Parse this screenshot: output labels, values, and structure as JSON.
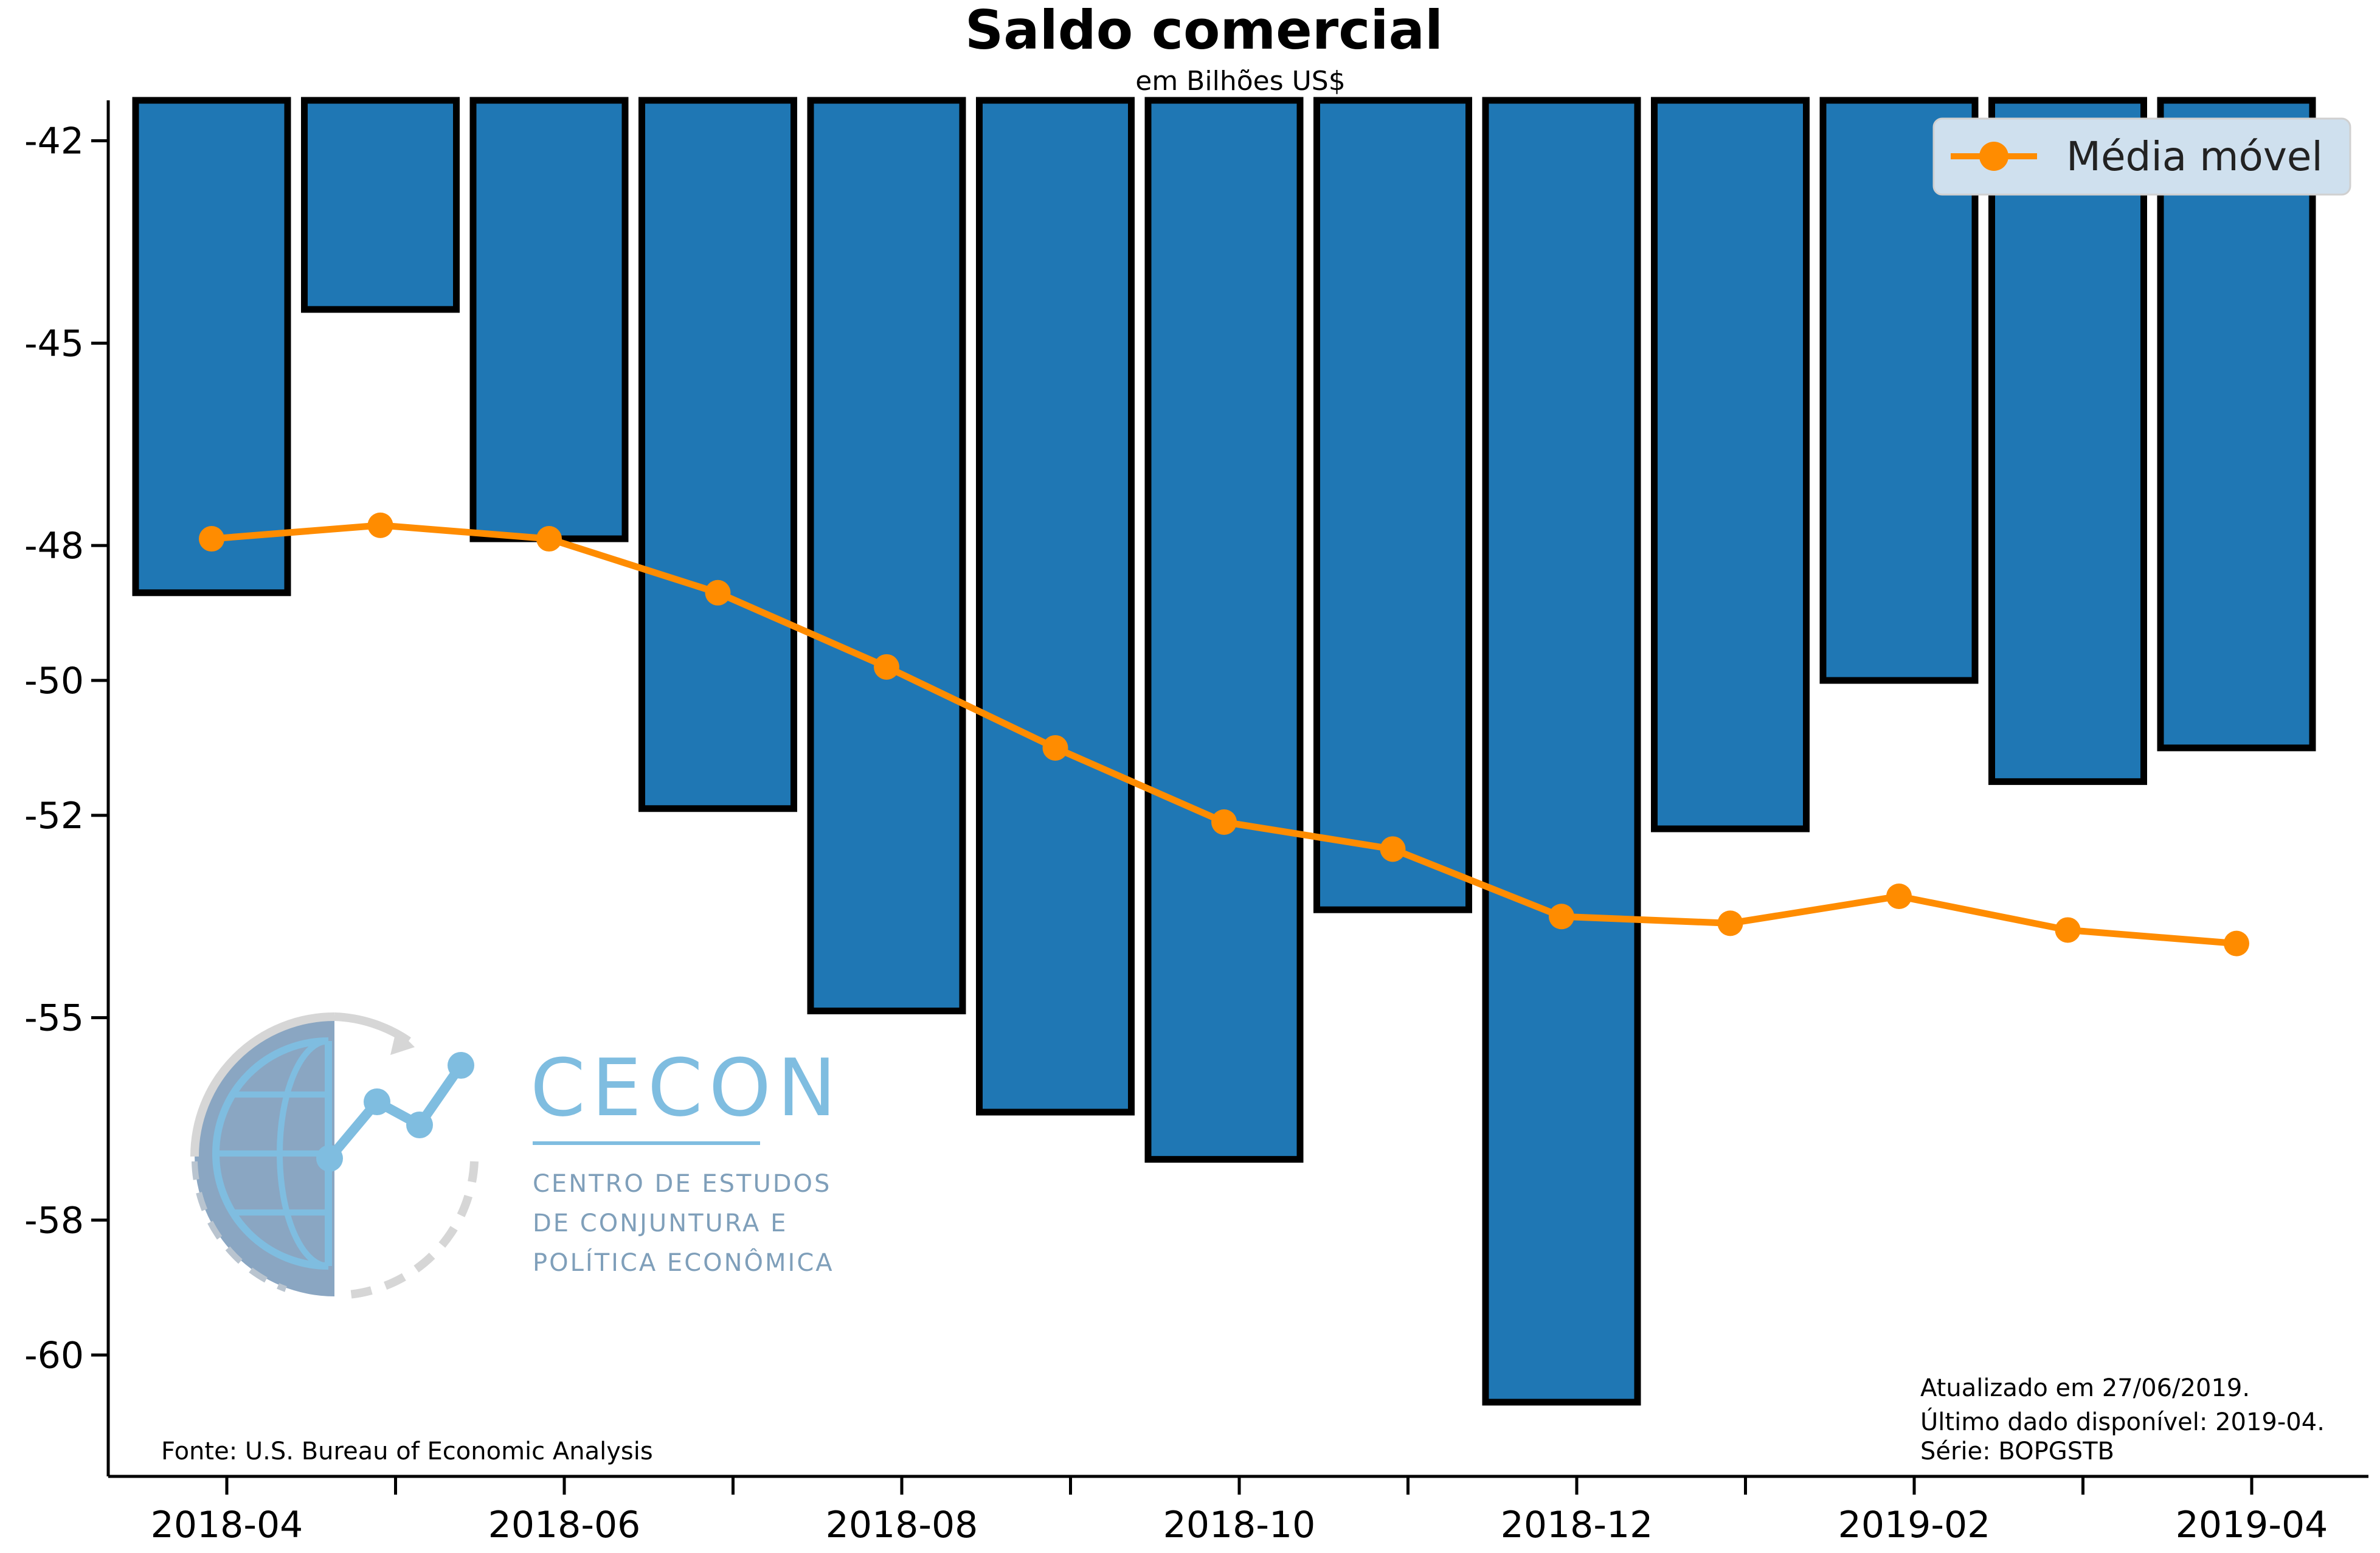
{
  "header": {
    "title": "Saldo comercial",
    "subtitle": "em Bilhões US$"
  },
  "chart_data": {
    "type": "bar",
    "title": "Saldo comercial",
    "subtitle": "em Bilhões US$",
    "categories": [
      "2018-04",
      "2018-05",
      "2018-06",
      "2018-07",
      "2018-08",
      "2018-09",
      "2018-10",
      "2018-11",
      "2018-12",
      "2019-01",
      "2019-02",
      "2019-03",
      "2019-04"
    ],
    "series": [
      {
        "type": "bar",
        "color": "#1f77b4",
        "values": [
          -48.7,
          -44.5,
          -47.9,
          -51.9,
          -54.9,
          -56.4,
          -57.1,
          -53.4,
          -60.7,
          -52.2,
          -50.0,
          -51.5,
          -51.0
        ]
      },
      {
        "name": "Média móvel",
        "type": "line",
        "color": "#ff8c00",
        "values": [
          -47.9,
          -47.7,
          -47.9,
          -48.7,
          -49.8,
          -51.0,
          -52.1,
          -52.5,
          -53.5,
          -53.6,
          -53.2,
          -53.7,
          -53.9
        ]
      }
    ],
    "ylim": [
      -61.8,
      -41.4
    ],
    "y_ticks": [
      -42,
      -45,
      -48,
      -50,
      -52,
      -55,
      -58,
      -60
    ],
    "x_tick_labels": [
      "2018-04",
      "2018-06",
      "2018-08",
      "2018-10",
      "2018-12",
      "2019-02",
      "2019-04"
    ],
    "xlabel": "",
    "ylabel": "",
    "grid": false,
    "legend_placement": "top-right"
  },
  "footer": {
    "source": "Fonte: U.S. Bureau of Economic Analysis",
    "updated": "Atualizado em 27/06/2019.",
    "last_data": "Último dado disponível: 2019-04.",
    "series_id": "Série: BOPGSTB"
  },
  "logo": {
    "name": "CECON",
    "line1": "CENTRO DE ESTUDOS",
    "line2": "DE CONJUNTURA E",
    "line3": "POLÍTICA ECONÔMICA"
  }
}
